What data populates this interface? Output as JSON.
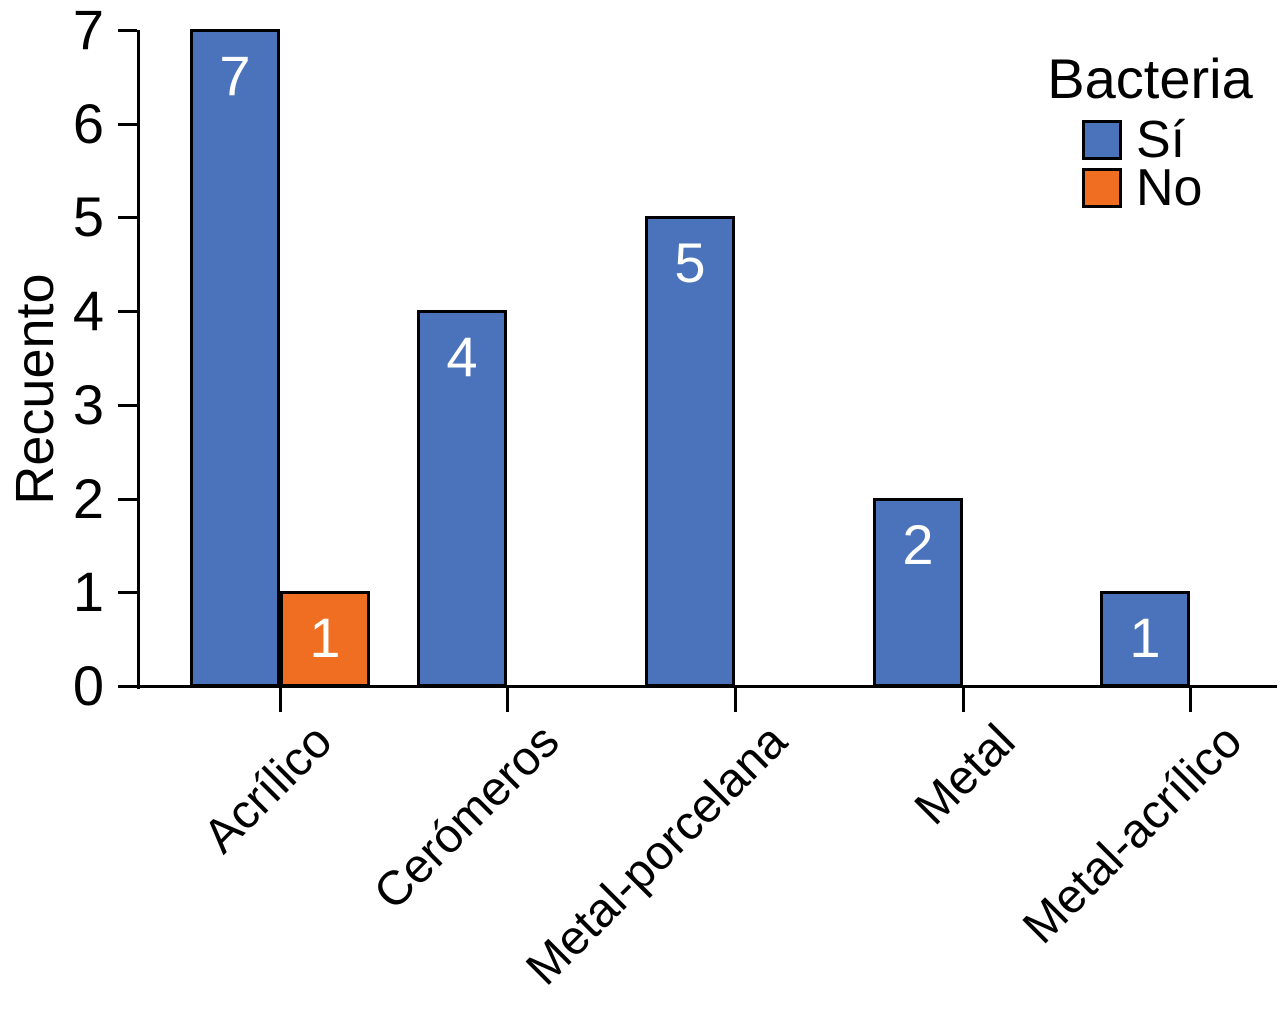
{
  "colors": {
    "si_fill": "#4A73BC",
    "no_fill": "#F06E21",
    "bar_border": "#000000",
    "axis": "#000000",
    "bar_label_text": "#FFFFFF",
    "text": "#000000",
    "background": "#FFFFFF"
  },
  "chart_data": {
    "type": "bar",
    "title": "",
    "categories": [
      "Acrílico",
      "Cerómeros",
      "Metal-porcelana",
      "Metal",
      "Metal-acrílico"
    ],
    "series": [
      {
        "name": "Sí",
        "color": "#4A73BC",
        "values": [
          7,
          4,
          5,
          2,
          1
        ]
      },
      {
        "name": "No",
        "color": "#F06E21",
        "values": [
          1,
          null,
          null,
          null,
          null
        ]
      }
    ],
    "bar_value_labels": [
      [
        "7",
        "4",
        "5",
        "2",
        "1"
      ],
      [
        "1",
        "",
        "",
        "",
        ""
      ]
    ],
    "xlabel": "",
    "ylabel": "Recuento",
    "ylim": [
      0,
      7
    ],
    "yticks": [
      "0",
      "1",
      "2",
      "3",
      "4",
      "5",
      "6",
      "7"
    ],
    "grid": false,
    "legend": {
      "title": "Bacteria",
      "position": "top-right",
      "entries": [
        "Sí",
        "No"
      ]
    }
  }
}
